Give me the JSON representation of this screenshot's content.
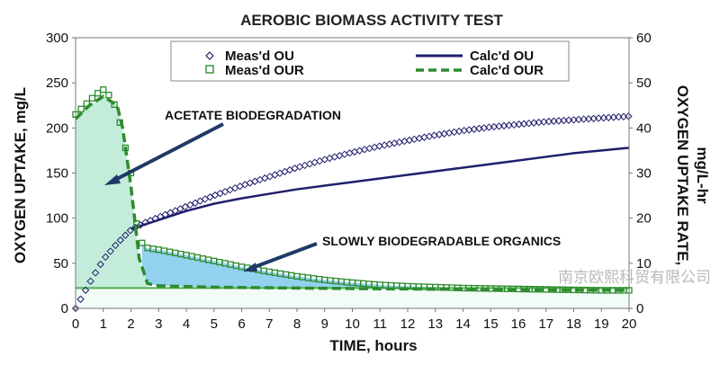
{
  "chart_data": {
    "type": "line",
    "title": "AEROBIC BIOMASS ACTIVITY TEST",
    "xlabel": "TIME, hours",
    "ylabel": "OXYGEN UPTAKE, mg/L",
    "y2label_line1": "OXYGEN UPTAKE RATE,",
    "y2label_line2": "mg/L-hr",
    "xlim": [
      0,
      20
    ],
    "ylim": [
      0,
      300
    ],
    "y2lim": [
      0,
      60
    ],
    "xticks": [
      0,
      1,
      2,
      3,
      4,
      5,
      6,
      7,
      8,
      9,
      10,
      11,
      12,
      13,
      14,
      15,
      16,
      17,
      18,
      19,
      20
    ],
    "yticks": [
      0,
      50,
      100,
      150,
      200,
      250,
      300
    ],
    "y2ticks": [
      0,
      10,
      20,
      30,
      40,
      50,
      60
    ],
    "grid": false,
    "legend_position": "top",
    "series": [
      {
        "name": "Meas'd OU",
        "axis": "left",
        "style": "diamond-markers",
        "color": "#1f1f6e",
        "x": [
          0,
          0.5,
          1,
          1.5,
          2,
          2.5,
          3,
          4,
          5,
          6,
          7,
          8,
          9,
          10,
          11,
          12,
          13,
          14,
          15,
          16,
          17,
          18,
          19,
          20
        ],
        "y": [
          0,
          28,
          54,
          72,
          87,
          95,
          101,
          113,
          125,
          136,
          146,
          156,
          165,
          173,
          180,
          186,
          192,
          197,
          201,
          204,
          207,
          209,
          211,
          213
        ]
      },
      {
        "name": "Calc'd OU",
        "axis": "left",
        "style": "solid-line",
        "color": "#1f1f6e",
        "x": [
          2,
          3,
          4,
          5,
          6,
          7,
          8,
          9,
          10,
          11,
          12,
          13,
          14,
          15,
          16,
          17,
          18,
          19,
          20
        ],
        "y": [
          88,
          98,
          108,
          116,
          122,
          127,
          132,
          136,
          140,
          144,
          148,
          152,
          156,
          160,
          164,
          168,
          172,
          175,
          178
        ]
      },
      {
        "name": "Meas'd OUR",
        "axis": "right",
        "style": "square-markers",
        "color": "#2e8b2e",
        "x": [
          0,
          0.25,
          0.5,
          0.75,
          1,
          1.25,
          1.5,
          2,
          2.25,
          2.5,
          3,
          4,
          5,
          6,
          7,
          8,
          9,
          10,
          11,
          12,
          13,
          14,
          15,
          16,
          17,
          18,
          19,
          20
        ],
        "y": [
          43,
          44.5,
          46,
          47.5,
          48.5,
          47,
          44,
          30,
          16,
          13.5,
          13,
          11.8,
          10.5,
          9.2,
          8.1,
          7.1,
          6.3,
          5.7,
          5.2,
          4.9,
          4.7,
          4.5,
          4.4,
          4.3,
          4.2,
          4.1,
          4,
          4
        ]
      },
      {
        "name": "Calc'd OUR",
        "axis": "right",
        "style": "dashed-line",
        "color": "#2e8b2e",
        "x": [
          0,
          0.5,
          1,
          1.5,
          1.7,
          2,
          2.3,
          2.6,
          3,
          5,
          8,
          12,
          16,
          20
        ],
        "y": [
          42,
          45,
          47,
          45,
          40,
          27,
          11,
          5.5,
          5,
          4.7,
          4.5,
          4.3,
          4.1,
          4
        ]
      }
    ],
    "baseline_our": 4.5,
    "annotations": [
      {
        "text": "ACETATE BIODEGRADATION",
        "arrow_to_x": 1.2,
        "arrow_to_y_right": 28
      },
      {
        "text": "SLOWLY BIODEGRADABLE ORGANICS",
        "arrow_to_x": 6.2,
        "arrow_to_y_right": 9
      }
    ]
  },
  "watermark": "南京欧熙科贸有限公司",
  "colors": {
    "navy": "#1f1f6e",
    "green": "#2e8b2e",
    "mint_fill": "#bdebd6",
    "blue_fill": "#6ec3ea",
    "arrow": "#1f3a66"
  }
}
